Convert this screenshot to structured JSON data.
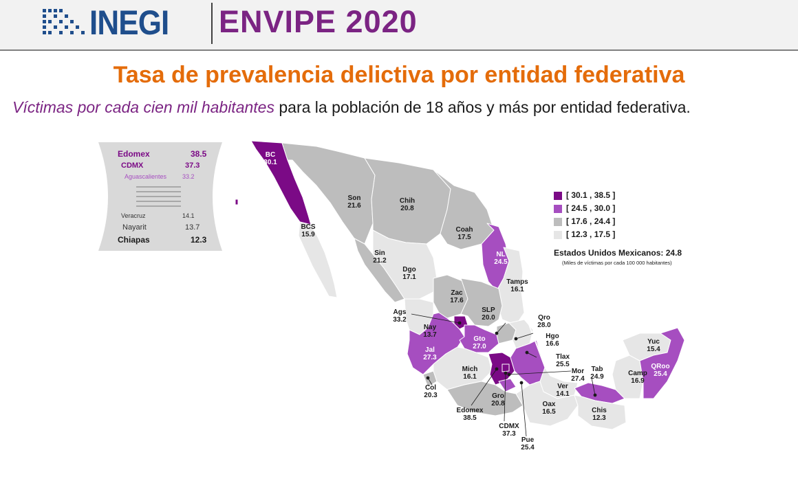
{
  "header": {
    "logo_text": "INEGI",
    "survey_title": "ENVIPE 2020"
  },
  "title": "Tasa de prevalencia delictiva por entidad federativa",
  "subtitle": {
    "emphasis": "Víctimas por cada cien mil habitantes",
    "rest": " para la población de 18 años y más por entidad federativa."
  },
  "ranking": {
    "top": [
      {
        "name": "Edomex",
        "value": "38.5"
      },
      {
        "name": "CDMX",
        "value": "37.3"
      },
      {
        "name": "Aguascalientes",
        "value": "33.2"
      }
    ],
    "bottom": [
      {
        "name": "Veracruz",
        "value": "14.1"
      },
      {
        "name": "Nayarit",
        "value": "13.7"
      },
      {
        "name": "Chiapas",
        "value": "12.3"
      }
    ]
  },
  "legend": {
    "classes": [
      {
        "label": "[ 30.1 , 38.5 ]",
        "color": "#7b0a86"
      },
      {
        "label": "[ 24.5 , 30.0 ]",
        "color": "#a64ec0"
      },
      {
        "label": "[ 17.6 , 24.4 ]",
        "color": "#bdbdbd"
      },
      {
        "label": "[ 12.3 , 17.5 ]",
        "color": "#e6e6e6"
      }
    ],
    "national_label": "Estados Unidos Mexicanos:",
    "national_value": "24.8",
    "note": "(Miles de víctimas por cada 100 000 habitantes)"
  },
  "states": [
    {
      "abbr": "BC",
      "value": "30.1"
    },
    {
      "abbr": "BCS",
      "value": "15.9"
    },
    {
      "abbr": "Son",
      "value": "21.6"
    },
    {
      "abbr": "Chih",
      "value": "20.8"
    },
    {
      "abbr": "Coah",
      "value": "17.5"
    },
    {
      "abbr": "NL",
      "value": "24.5"
    },
    {
      "abbr": "Sin",
      "value": "21.2"
    },
    {
      "abbr": "Dgo",
      "value": "17.1"
    },
    {
      "abbr": "Tamps",
      "value": "16.1"
    },
    {
      "abbr": "Zac",
      "value": "17.6"
    },
    {
      "abbr": "SLP",
      "value": "20.0"
    },
    {
      "abbr": "Ags",
      "value": "33.2"
    },
    {
      "abbr": "Qro",
      "value": "28.0"
    },
    {
      "abbr": "Nay",
      "value": "13.7"
    },
    {
      "abbr": "Hgo",
      "value": "16.6"
    },
    {
      "abbr": "Gto",
      "value": "27.0"
    },
    {
      "abbr": "Jal",
      "value": "27.3"
    },
    {
      "abbr": "Tlax",
      "value": "25.5"
    },
    {
      "abbr": "Yuc",
      "value": "15.4"
    },
    {
      "abbr": "Mich",
      "value": "16.1"
    },
    {
      "abbr": "Mor",
      "value": "27.4"
    },
    {
      "abbr": "Tab",
      "value": "24.9"
    },
    {
      "abbr": "QRoo",
      "value": "25.4"
    },
    {
      "abbr": "Camp",
      "value": "16.9"
    },
    {
      "abbr": "Col",
      "value": "20.3"
    },
    {
      "abbr": "Ver",
      "value": "14.1"
    },
    {
      "abbr": "Gro",
      "value": "20.8"
    },
    {
      "abbr": "Oax",
      "value": "16.5"
    },
    {
      "abbr": "Chis",
      "value": "12.3"
    },
    {
      "abbr": "Edomex",
      "value": "38.5"
    },
    {
      "abbr": "CDMX",
      "value": "37.3"
    },
    {
      "abbr": "Pue",
      "value": "25.4"
    }
  ]
}
